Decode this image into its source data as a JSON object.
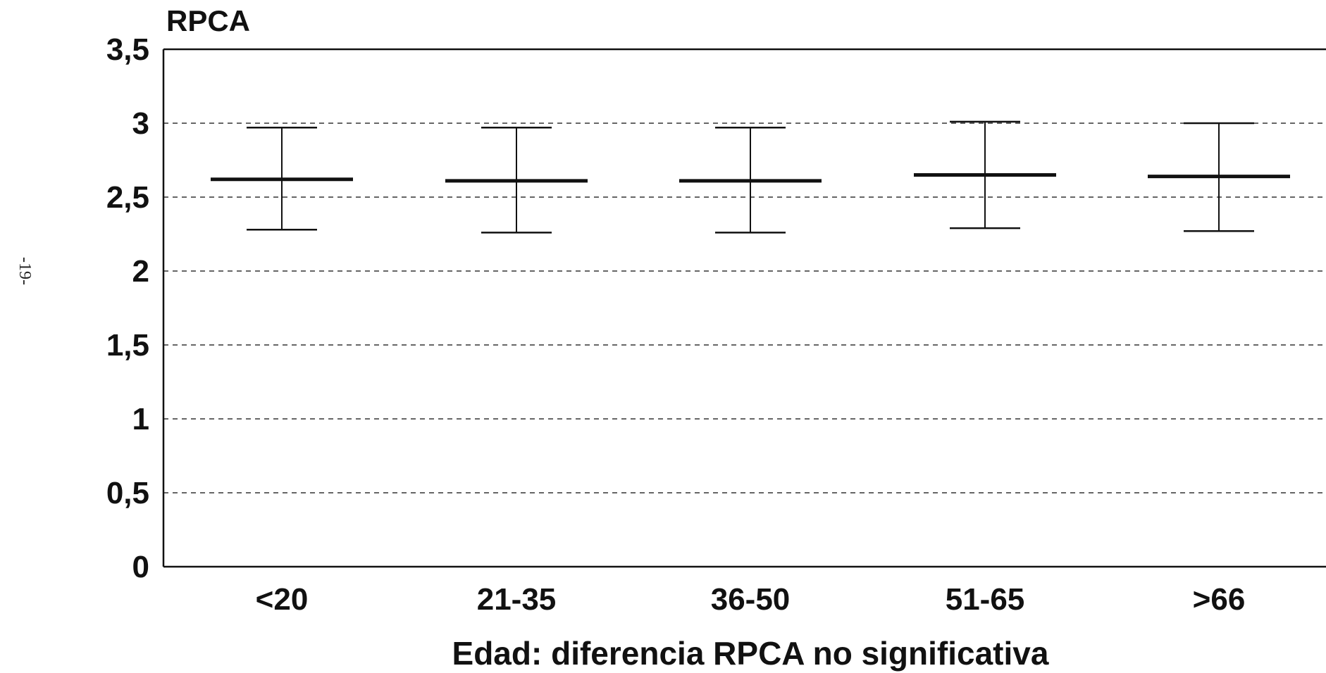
{
  "page": {
    "margin_text": "-19-"
  },
  "chart_data": {
    "type": "errorbar",
    "title": "",
    "ylabel": "RPCA",
    "xlabel": "Edad: diferencia RPCA  no significativa",
    "categories": [
      "<20",
      "21-35",
      "36-50",
      "51-65",
      ">66"
    ],
    "series": [
      {
        "mean": [
          2.62,
          2.61,
          2.61,
          2.65,
          2.64
        ],
        "upper": [
          2.97,
          2.97,
          2.97,
          3.01,
          3.0
        ],
        "lower": [
          2.28,
          2.26,
          2.26,
          2.29,
          2.27
        ]
      }
    ],
    "ylim": [
      0,
      3.5
    ],
    "yticks": [
      0,
      0.5,
      1,
      1.5,
      2,
      2.5,
      3,
      3.5
    ],
    "ytick_labels": [
      "0",
      "0,5",
      "1",
      "1,5",
      "2",
      "2,5",
      "3",
      "3,5"
    ],
    "grid": true,
    "colors": {
      "ink": "#111111",
      "grid": "#333333",
      "background": "#ffffff"
    }
  }
}
